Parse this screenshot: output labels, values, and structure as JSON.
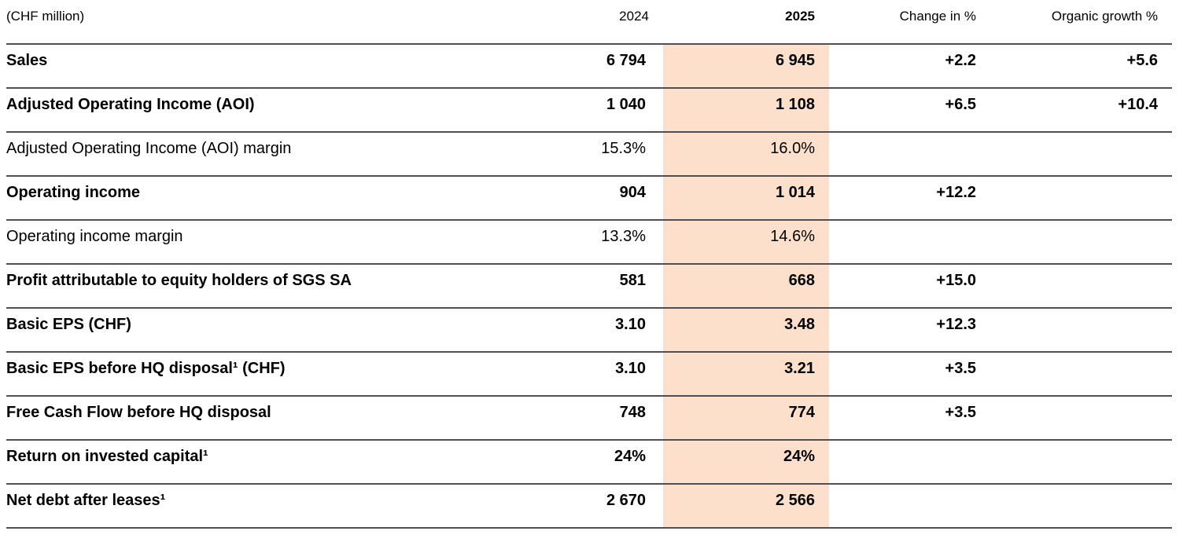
{
  "table": {
    "unit_label": "(CHF million)",
    "highlight_color": "#fce0cb",
    "columns": {
      "year_prev": "2024",
      "year_curr": "2025",
      "change": "Change in %",
      "organic": "Organic growth %"
    },
    "rows": [
      {
        "label": "Sales",
        "bold": true,
        "v2024": "6 794",
        "v2025": "6 945",
        "change": "+2.2",
        "organic": "+5.6"
      },
      {
        "label": "Adjusted Operating Income (AOI)",
        "bold": true,
        "v2024": "1 040",
        "v2025": "1 108",
        "change": "+6.5",
        "organic": "+10.4"
      },
      {
        "label": "Adjusted Operating Income (AOI) margin",
        "bold": false,
        "v2024": "15.3%",
        "v2025": "16.0%",
        "change": "",
        "organic": ""
      },
      {
        "label": "Operating income",
        "bold": true,
        "v2024": "904",
        "v2025": "1 014",
        "change": "+12.2",
        "organic": ""
      },
      {
        "label": "Operating income margin",
        "bold": false,
        "v2024": "13.3%",
        "v2025": "14.6%",
        "change": "",
        "organic": ""
      },
      {
        "label": "Profit attributable to equity holders of SGS SA",
        "bold": true,
        "v2024": "581",
        "v2025": "668",
        "change": "+15.0",
        "organic": ""
      },
      {
        "label": "Basic EPS (CHF)",
        "bold": true,
        "v2024": "3.10",
        "v2025": "3.48",
        "change": "+12.3",
        "organic": ""
      },
      {
        "label": "Basic EPS before HQ disposal¹ (CHF)",
        "bold": true,
        "v2024": "3.10",
        "v2025": "3.21",
        "change": "+3.5",
        "organic": ""
      },
      {
        "label": "Free Cash Flow before HQ disposal",
        "bold": true,
        "v2024": "748",
        "v2025": "774",
        "change": "+3.5",
        "organic": ""
      },
      {
        "label": "Return on invested capital¹",
        "bold": true,
        "v2024": "24%",
        "v2025": "24%",
        "change": "",
        "organic": ""
      },
      {
        "label": "Net debt after leases¹",
        "bold": true,
        "v2024": "2 670",
        "v2025": "2 566",
        "change": "",
        "organic": ""
      }
    ]
  }
}
